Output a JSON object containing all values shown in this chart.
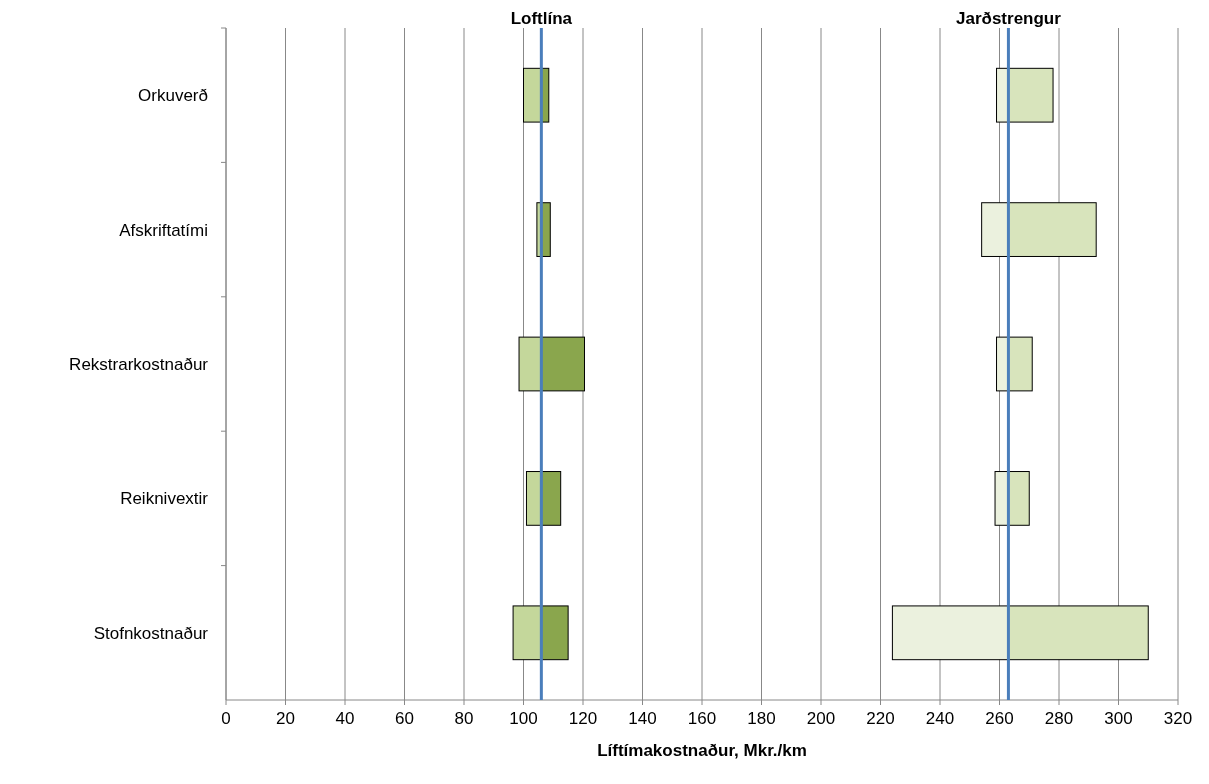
{
  "chart_data": {
    "type": "bar",
    "orientation": "horizontal",
    "xlabel": "Líftímakostnaður, Mkr./km",
    "categories": [
      "Orkuverð",
      "Afskriftatími",
      "Rekstrarkostnaður",
      "Reiknivextir",
      "Stofnkostnaður"
    ],
    "series": [
      {
        "color": "#c4d79b",
        "base": [
          100,
          104.5,
          98.5,
          101,
          96.5
        ],
        "values": [
          6,
          1.5,
          7.5,
          5,
          9.5
        ]
      },
      {
        "color": "#8aa64d",
        "base": [
          106,
          106,
          106,
          106,
          106
        ],
        "values": [
          2.5,
          3,
          14.5,
          6.5,
          9
        ]
      },
      {
        "color": "#ebf1de",
        "base": [
          259,
          254,
          259,
          258.5,
          224
        ],
        "values": [
          4,
          9,
          4,
          4.5,
          39
        ]
      },
      {
        "color": "#d8e4bc",
        "base": [
          263,
          263,
          263,
          263,
          263
        ],
        "values": [
          15,
          29.5,
          8,
          7,
          47
        ]
      }
    ],
    "xlim": [
      0,
      320
    ],
    "xticks": [
      0,
      20,
      40,
      60,
      80,
      100,
      120,
      140,
      160,
      180,
      200,
      220,
      240,
      260,
      280,
      300,
      320
    ],
    "grid": "x",
    "ref_lines": [
      {
        "axis": "x",
        "value": 106,
        "label": "Loftlína",
        "color": "#4a7ebb"
      },
      {
        "axis": "x",
        "value": 263,
        "label": "Jarðstrengur",
        "color": "#4a7ebb"
      }
    ]
  }
}
